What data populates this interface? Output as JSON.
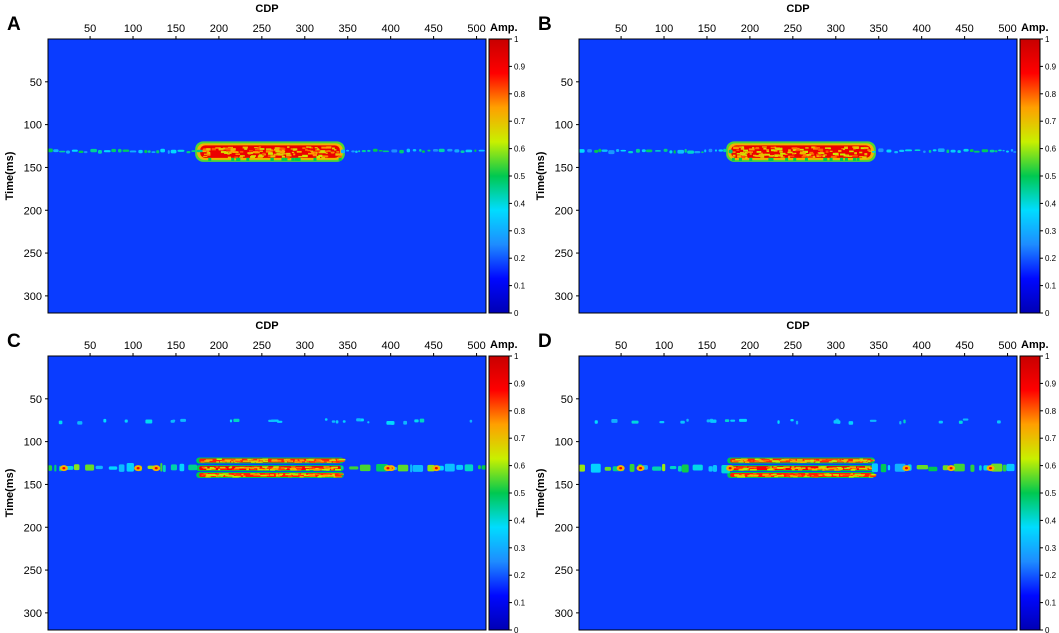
{
  "chart_data": [
    {
      "type": "heatmap",
      "panel_label": "A",
      "title": "",
      "xlabel": "CDP",
      "ylabel": "Time(ms)",
      "xticks": [
        "50",
        "100",
        "150",
        "200",
        "250",
        "300",
        "350",
        "400",
        "450",
        "500"
      ],
      "yticks": [
        "50",
        "100",
        "150",
        "200",
        "250",
        "300"
      ],
      "xlim": [
        1,
        511
      ],
      "ylim": [
        0,
        320
      ],
      "x_axis_position": "top",
      "y_axis_inverted": true,
      "colorbar": {
        "label": "Amp.",
        "ticks": [
          "0",
          "0.1",
          "0.2",
          "0.3",
          "0.4",
          "0.5",
          "0.6",
          "0.7",
          "0.8",
          "0.9",
          "1"
        ],
        "range": [
          0,
          1
        ],
        "colormap": [
          "#0000b4",
          "#0008ff",
          "#1e8cff",
          "#00dcff",
          "#00c850",
          "#c8f000",
          "#ffa000",
          "#ff0000",
          "#c80000"
        ]
      },
      "background_color": "#0a3cff",
      "features": [
        {
          "kind": "strong_event",
          "cdp_range": [
            177,
            342
          ],
          "time_range": [
            123,
            140
          ],
          "amplitude": 0.95
        },
        {
          "kind": "weak_event",
          "cdp_range": [
            1,
            177
          ],
          "time_ms": 131,
          "amplitude": 0.42
        },
        {
          "kind": "weak_event",
          "cdp_range": [
            342,
            511
          ],
          "time_ms": 131,
          "amplitude": 0.42
        }
      ]
    },
    {
      "type": "heatmap",
      "panel_label": "B",
      "title": "",
      "xlabel": "CDP",
      "ylabel": "Time(ms)",
      "xticks": [
        "50",
        "100",
        "150",
        "200",
        "250",
        "300",
        "350",
        "400",
        "450",
        "500"
      ],
      "yticks": [
        "50",
        "100",
        "150",
        "200",
        "250",
        "300"
      ],
      "xlim": [
        1,
        511
      ],
      "ylim": [
        0,
        320
      ],
      "x_axis_position": "top",
      "y_axis_inverted": true,
      "colorbar": {
        "label": "Amp.",
        "ticks": [
          "0",
          "0.1",
          "0.2",
          "0.3",
          "0.4",
          "0.5",
          "0.6",
          "0.7",
          "0.8",
          "0.9",
          "1"
        ],
        "range": [
          0,
          1
        ],
        "colormap": [
          "#0000b4",
          "#0008ff",
          "#1e8cff",
          "#00dcff",
          "#00c850",
          "#c8f000",
          "#ffa000",
          "#ff0000",
          "#c80000"
        ]
      },
      "background_color": "#0a3cff",
      "features": [
        {
          "kind": "strong_event",
          "cdp_range": [
            177,
            342
          ],
          "time_range": [
            123,
            140
          ],
          "amplitude": 0.95
        },
        {
          "kind": "weak_event",
          "cdp_range": [
            1,
            177
          ],
          "time_ms": 131,
          "amplitude": 0.42
        },
        {
          "kind": "weak_event",
          "cdp_range": [
            342,
            511
          ],
          "time_ms": 131,
          "amplitude": 0.42
        }
      ]
    },
    {
      "type": "heatmap",
      "panel_label": "C",
      "title": "",
      "xlabel": "CDP",
      "ylabel": "Time(ms)",
      "xticks": [
        "50",
        "100",
        "150",
        "200",
        "250",
        "300",
        "350",
        "400",
        "450",
        "500"
      ],
      "yticks": [
        "50",
        "100",
        "150",
        "200",
        "250",
        "300"
      ],
      "xlim": [
        1,
        511
      ],
      "ylim": [
        0,
        320
      ],
      "x_axis_position": "top",
      "y_axis_inverted": true,
      "colorbar": {
        "label": "Amp.",
        "ticks": [
          "0",
          "0.1",
          "0.2",
          "0.3",
          "0.4",
          "0.5",
          "0.6",
          "0.7",
          "0.8",
          "0.9",
          "1"
        ],
        "range": [
          0,
          1
        ],
        "colormap": [
          "#0000b4",
          "#0008ff",
          "#1e8cff",
          "#00dcff",
          "#00c850",
          "#c8f000",
          "#ffa000",
          "#ff0000",
          "#c80000"
        ]
      },
      "background_color": "#0a3cff",
      "features": [
        {
          "kind": "strong_event",
          "cdp_range": [
            177,
            342
          ],
          "time_ms": 122,
          "amplitude": 0.85
        },
        {
          "kind": "strong_event",
          "cdp_range": [
            177,
            342
          ],
          "time_ms": 131,
          "amplitude": 0.9
        },
        {
          "kind": "strong_event",
          "cdp_range": [
            177,
            342
          ],
          "time_ms": 139,
          "amplitude": 0.85
        },
        {
          "kind": "weak_event",
          "cdp_range": [
            1,
            177
          ],
          "time_ms": 131,
          "amplitude": 0.5
        },
        {
          "kind": "weak_event",
          "cdp_range": [
            342,
            511
          ],
          "time_ms": 131,
          "amplitude": 0.5
        },
        {
          "kind": "faint_event",
          "cdp_range": [
            1,
            511
          ],
          "time_ms": 75,
          "amplitude": 0.3
        }
      ]
    },
    {
      "type": "heatmap",
      "panel_label": "D",
      "title": "",
      "xlabel": "CDP",
      "ylabel": "Time(ms)",
      "xticks": [
        "50",
        "100",
        "150",
        "200",
        "250",
        "300",
        "350",
        "400",
        "450",
        "500"
      ],
      "yticks": [
        "50",
        "100",
        "150",
        "200",
        "250",
        "300"
      ],
      "xlim": [
        1,
        511
      ],
      "ylim": [
        0,
        320
      ],
      "x_axis_position": "top",
      "y_axis_inverted": true,
      "colorbar": {
        "label": "Amp.",
        "ticks": [
          "0",
          "0.1",
          "0.2",
          "0.3",
          "0.4",
          "0.5",
          "0.6",
          "0.7",
          "0.8",
          "0.9",
          "1"
        ],
        "range": [
          0,
          1
        ],
        "colormap": [
          "#0000b4",
          "#0008ff",
          "#1e8cff",
          "#00dcff",
          "#00c850",
          "#c8f000",
          "#ffa000",
          "#ff0000",
          "#c80000"
        ]
      },
      "background_color": "#0a3cff",
      "features": [
        {
          "kind": "strong_event",
          "cdp_range": [
            177,
            342
          ],
          "time_ms": 122,
          "amplitude": 0.85
        },
        {
          "kind": "strong_event",
          "cdp_range": [
            177,
            342
          ],
          "time_ms": 131,
          "amplitude": 0.9
        },
        {
          "kind": "strong_event",
          "cdp_range": [
            177,
            342
          ],
          "time_ms": 139,
          "amplitude": 0.85
        },
        {
          "kind": "weak_event",
          "cdp_range": [
            1,
            177
          ],
          "time_ms": 131,
          "amplitude": 0.5
        },
        {
          "kind": "weak_event",
          "cdp_range": [
            342,
            511
          ],
          "time_ms": 131,
          "amplitude": 0.5
        },
        {
          "kind": "faint_event",
          "cdp_range": [
            1,
            511
          ],
          "time_ms": 75,
          "amplitude": 0.3
        }
      ]
    }
  ]
}
